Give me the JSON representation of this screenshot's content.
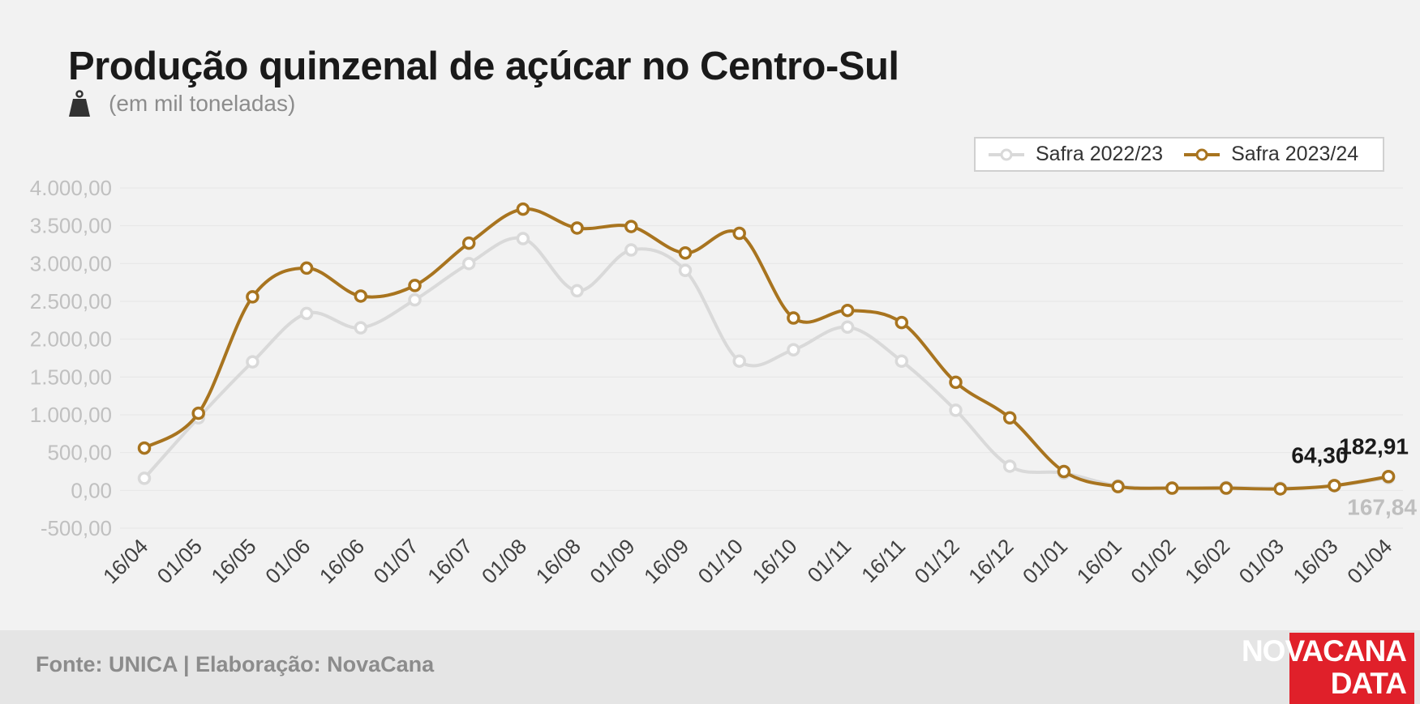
{
  "title": "Produção quinzenal de açúcar no Centro-Sul",
  "subtitle": "(em mil toneladas)",
  "source": "Fonte: UNICA | Elaboração: NovaCana",
  "logo": {
    "line1": "NOVACANA",
    "line2": "DATA"
  },
  "icons": {
    "unit": "weight-icon"
  },
  "colors": {
    "background": "#f2f2f2",
    "series_2022": "#d9d9d9",
    "series_2023": "#a8741f",
    "axis_text": "#c0c0c0",
    "logo_bg": "#e0202a"
  },
  "chart_data": {
    "type": "line",
    "title": "Produção quinzenal de açúcar no Centro-Sul",
    "ylabel": "",
    "xlabel": "",
    "ylim": [
      -500,
      4000
    ],
    "yticks": [
      "4.000,00",
      "3.500,00",
      "3.000,00",
      "2.500,00",
      "2.000,00",
      "1.500,00",
      "1.000,00",
      "500,00",
      "0,00",
      "-500,00"
    ],
    "ytick_values": [
      4000,
      3500,
      3000,
      2500,
      2000,
      1500,
      1000,
      500,
      0,
      -500
    ],
    "grid": true,
    "legend_position": "top-right",
    "categories": [
      "16/04",
      "01/05",
      "16/05",
      "01/06",
      "16/06",
      "01/07",
      "16/07",
      "01/08",
      "16/08",
      "01/09",
      "16/09",
      "01/10",
      "16/10",
      "01/11",
      "16/11",
      "01/12",
      "16/12",
      "01/01",
      "16/01",
      "01/02",
      "16/02",
      "01/03",
      "16/03",
      "01/04"
    ],
    "series": [
      {
        "name": "Safra 2022/23",
        "values": [
          160,
          960,
          1700,
          2340,
          2150,
          2520,
          3000,
          3330,
          2640,
          3180,
          2910,
          1710,
          1860,
          2160,
          1710,
          1060,
          320,
          230,
          60,
          30,
          40,
          30,
          60,
          167.84
        ],
        "point_labels": {
          "23": "167,84"
        }
      },
      {
        "name": "Safra 2023/24",
        "values": [
          560,
          1020,
          2560,
          2940,
          2570,
          2710,
          3270,
          3720,
          3470,
          3490,
          3140,
          3400,
          2280,
          2380,
          2220,
          1430,
          960,
          250,
          50,
          30,
          30,
          20,
          64.3,
          182.91
        ],
        "point_labels": {
          "22": "64,30",
          "23": "182,91"
        }
      }
    ]
  }
}
